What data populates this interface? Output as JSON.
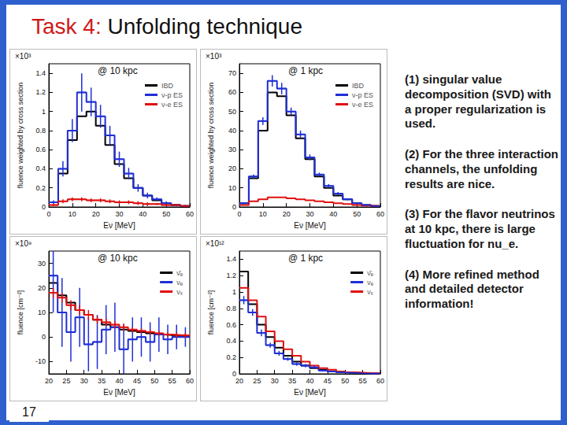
{
  "slide": {
    "title_prefix": "Task 4:",
    "title": "Unfolding technique",
    "page_number": "17",
    "notes": [
      "(1) singular value decomposition (SVD) with a proper regularization is used.",
      "(2) For the three interaction channels, the unfolding results are nice.",
      "(3) For the flavor neutrinos at 10 kpc, there is large fluctuation for nu_e.",
      "(4) More refined method and detailed detector information!"
    ]
  },
  "chart_data": [
    {
      "type": "histogram",
      "annotations": [
        "@ 10 kpc",
        "×10³"
      ],
      "x_label": "Eν [MeV]",
      "y_label": "fluence weighted by cross section",
      "bins": [
        0,
        4,
        8,
        12,
        16,
        20,
        24,
        28,
        32,
        36,
        40,
        44,
        48,
        52,
        56,
        60
      ],
      "xlim": [
        0,
        60
      ],
      "xticks": [
        0,
        10,
        20,
        30,
        40,
        50,
        60
      ],
      "ylim": [
        0,
        1.5
      ],
      "yticks": [
        0,
        0.2,
        0.4,
        0.6,
        0.8,
        1,
        1.2,
        1.4
      ],
      "legend": "top-right",
      "grid": false,
      "line_style": "step",
      "series": [
        {
          "name": "IBD",
          "color": "#000000",
          "values": [
            0.05,
            0.35,
            0.7,
            0.95,
            1.0,
            0.85,
            0.65,
            0.45,
            0.3,
            0.2,
            0.12,
            0.07,
            0.04,
            0.02,
            0.01
          ]
        },
        {
          "name": "ν-p ES",
          "color": "#1f2fd6",
          "values": [
            0.05,
            0.4,
            0.8,
            1.2,
            1.1,
            0.95,
            0.75,
            0.5,
            0.35,
            0.2,
            0.12,
            0.08,
            0.04,
            0.02,
            0.01
          ],
          "errors": [
            0.02,
            0.08,
            0.12,
            0.2,
            0.15,
            0.12,
            0.1,
            0.08,
            0.06,
            0.04,
            0.03,
            0.02,
            0.02,
            0.01,
            0.01
          ]
        },
        {
          "name": "ν-e ES",
          "color": "#e01010",
          "values": [
            0.02,
            0.06,
            0.08,
            0.08,
            0.07,
            0.07,
            0.06,
            0.05,
            0.05,
            0.04,
            0.03,
            0.03,
            0.02,
            0.02,
            0.01
          ],
          "errors": [
            0.01,
            0.02,
            0.02,
            0.02,
            0.02,
            0.02,
            0.02,
            0.02,
            0.02,
            0.02,
            0.02,
            0.01,
            0.01,
            0.01,
            0.01
          ]
        }
      ]
    },
    {
      "type": "histogram",
      "annotations": [
        "@ 1 kpc",
        "×10³"
      ],
      "x_label": "Eν [MeV]",
      "y_label": "fluence weighted by cross section",
      "bins": [
        0,
        4,
        8,
        12,
        16,
        20,
        24,
        28,
        32,
        36,
        40,
        44,
        48,
        52,
        56,
        60
      ],
      "xlim": [
        0,
        60
      ],
      "xticks": [
        0,
        10,
        20,
        30,
        40,
        50,
        60
      ],
      "ylim": [
        0,
        75
      ],
      "yticks": [
        0,
        10,
        20,
        30,
        40,
        50,
        60,
        70
      ],
      "legend": "top-right",
      "grid": false,
      "line_style": "step",
      "series": [
        {
          "name": "IBD",
          "color": "#000000",
          "values": [
            2,
            15,
            40,
            60,
            58,
            48,
            36,
            25,
            16,
            10,
            6,
            4,
            2,
            1,
            0.5
          ]
        },
        {
          "name": "ν-p ES",
          "color": "#1f2fd6",
          "values": [
            2,
            16,
            45,
            66,
            62,
            50,
            38,
            26,
            17,
            11,
            7,
            4,
            2,
            1,
            0.5
          ],
          "errors": [
            0.5,
            1,
            2,
            3,
            3,
            2,
            2,
            1.5,
            1,
            1,
            0.8,
            0.5,
            0.4,
            0.3,
            0.2
          ]
        },
        {
          "name": "ν-e ES",
          "color": "#e01010",
          "values": [
            1,
            3,
            4,
            5,
            5,
            4.5,
            4,
            3.5,
            3,
            2.5,
            2,
            1.5,
            1,
            0.7,
            0.5
          ]
        }
      ]
    },
    {
      "type": "histogram",
      "annotations": [
        "@ 10 kpc",
        "×10⁹"
      ],
      "x_label": "Eν [MeV]",
      "y_label": "fluence [cm⁻²]",
      "bins": [
        20,
        22.5,
        25,
        27.5,
        30,
        32.5,
        35,
        37.5,
        40,
        42.5,
        45,
        47.5,
        50,
        52.5,
        55,
        57.5,
        60
      ],
      "xlim": [
        20,
        60
      ],
      "xticks": [
        20,
        25,
        30,
        35,
        40,
        45,
        50,
        55,
        60
      ],
      "ylim": [
        -15,
        35
      ],
      "yticks": [
        -10,
        0,
        10,
        20,
        30
      ],
      "legend": "top-right",
      "grid": false,
      "line_style": "step",
      "series": [
        {
          "name": "ν̄ₑ",
          "color": "#000000",
          "values": [
            22,
            17,
            14,
            11,
            9,
            7,
            5,
            4,
            3,
            2.5,
            2,
            1.5,
            1,
            0.8,
            0.5,
            0.3
          ]
        },
        {
          "name": "νₑ",
          "color": "#1f2fd6",
          "values": [
            25,
            10,
            2,
            8,
            -3,
            -2,
            3,
            4,
            -5,
            -1,
            0,
            -2,
            1,
            -1,
            0,
            0
          ],
          "errors": [
            15,
            14,
            12,
            12,
            11,
            11,
            10,
            10,
            10,
            9,
            8,
            8,
            7,
            6,
            5,
            4
          ]
        },
        {
          "name": "νₓ",
          "color": "#e01010",
          "values": [
            18,
            16,
            13,
            11,
            9,
            7,
            6,
            5,
            4,
            3,
            2.5,
            2,
            1.5,
            1,
            0.8,
            0.6
          ],
          "errors": [
            2,
            2,
            2,
            2,
            2,
            1.5,
            1.5,
            1.5,
            1.5,
            1,
            1,
            1,
            1,
            1,
            1,
            1
          ]
        }
      ]
    },
    {
      "type": "histogram",
      "annotations": [
        "@ 1 kpc",
        "×10¹²"
      ],
      "x_label": "Eν [MeV]",
      "y_label": "fluence [cm⁻²]",
      "bins": [
        20,
        22.5,
        25,
        27.5,
        30,
        32.5,
        35,
        37.5,
        40,
        42.5,
        45,
        47.5,
        50,
        52.5,
        55,
        57.5,
        60
      ],
      "xlim": [
        20,
        60
      ],
      "xticks": [
        20,
        25,
        30,
        35,
        40,
        45,
        50,
        55,
        60
      ],
      "ylim": [
        0,
        1.5
      ],
      "yticks": [
        0,
        0.2,
        0.4,
        0.6,
        0.8,
        1,
        1.2,
        1.4
      ],
      "legend": "top-right",
      "grid": false,
      "line_style": "step",
      "series": [
        {
          "name": "ν̄ₑ",
          "color": "#000000",
          "values": [
            1.25,
            0.85,
            0.6,
            0.45,
            0.32,
            0.22,
            0.15,
            0.1,
            0.07,
            0.05,
            0.03,
            0.02,
            0.015,
            0.01,
            0.007,
            0.005
          ]
        },
        {
          "name": "νₑ",
          "color": "#1f2fd6",
          "values": [
            0.9,
            0.75,
            0.5,
            0.35,
            0.25,
            0.18,
            0.12,
            0.1,
            0.08,
            0.04,
            0.03,
            0.02,
            0.015,
            0.01,
            0.005,
            0.004
          ],
          "errors": [
            0.05,
            0.04,
            0.04,
            0.03,
            0.03,
            0.02,
            0.02,
            0.02,
            0.02,
            0.01,
            0.01,
            0.01,
            0.01,
            0.01,
            0.005,
            0.005
          ]
        },
        {
          "name": "νₓ",
          "color": "#e01010",
          "values": [
            1.05,
            0.9,
            0.7,
            0.52,
            0.4,
            0.3,
            0.22,
            0.15,
            0.1,
            0.07,
            0.05,
            0.03,
            0.02,
            0.015,
            0.01,
            0.008
          ]
        }
      ]
    }
  ]
}
